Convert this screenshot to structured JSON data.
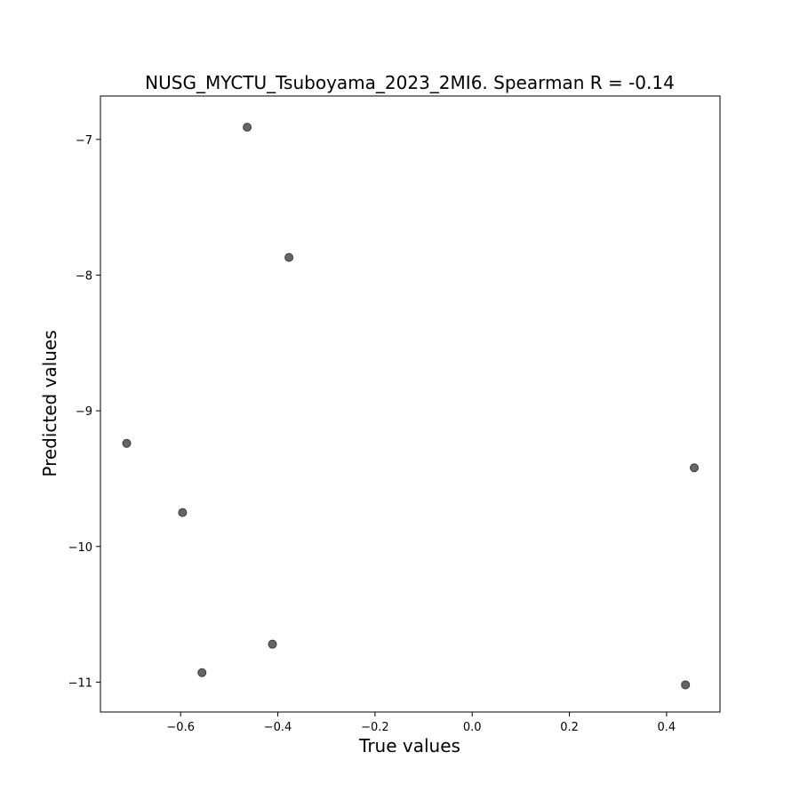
{
  "chart_data": {
    "type": "scatter",
    "title": "NUSG_MYCTU_Tsuboyama_2023_2MI6. Spearman R = -0.14",
    "xlabel": "True values",
    "ylabel": "Predicted values",
    "xlim": [
      -0.765,
      0.51
    ],
    "ylim": [
      -11.22,
      -6.68
    ],
    "xticks": [
      -0.6,
      -0.4,
      -0.2,
      0.0,
      0.2,
      0.4
    ],
    "xtick_labels": [
      "−0.6",
      "−0.4",
      "−0.2",
      "0.0",
      "0.2",
      "0.4"
    ],
    "yticks": [
      -11,
      -10,
      -9,
      -8,
      -7
    ],
    "ytick_labels": [
      "−11",
      "−10",
      "−9",
      "−8",
      "−7"
    ],
    "grid": false,
    "marker_color": "#666666",
    "marker_edge_color": "#3a3a3a",
    "points": [
      {
        "x": -0.463,
        "y": -6.91
      },
      {
        "x": -0.377,
        "y": -7.87
      },
      {
        "x": -0.711,
        "y": -9.24
      },
      {
        "x": -0.596,
        "y": -9.75
      },
      {
        "x": -0.411,
        "y": -10.72
      },
      {
        "x": -0.556,
        "y": -10.93
      },
      {
        "x": 0.457,
        "y": -9.42
      },
      {
        "x": 0.439,
        "y": -11.02
      }
    ]
  }
}
